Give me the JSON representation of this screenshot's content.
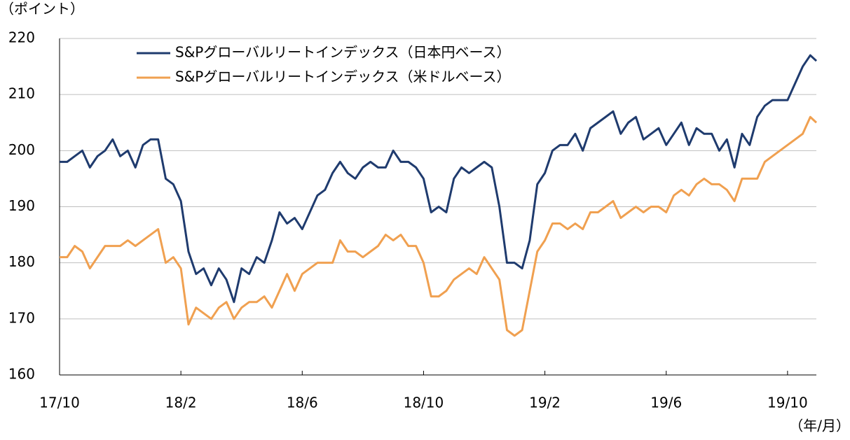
{
  "chart_data": {
    "type": "line",
    "y_unit_label": "（ポイント）",
    "x_unit_label": "（年/月）",
    "xlim": [
      0,
      24.95
    ],
    "xticks": [
      {
        "value": 0,
        "label": "17/10"
      },
      {
        "value": 4,
        "label": "18/2"
      },
      {
        "value": 8,
        "label": "18/6"
      },
      {
        "value": 12,
        "label": "18/10"
      },
      {
        "value": 16,
        "label": "19/2"
      },
      {
        "value": 20,
        "label": "19/6"
      },
      {
        "value": 24,
        "label": "19/10"
      }
    ],
    "ylim": [
      160,
      220
    ],
    "yticks": [
      160,
      170,
      180,
      190,
      200,
      210,
      220
    ],
    "grid": true,
    "legend": "upper-left",
    "x": [
      0,
      0.25,
      0.5,
      0.75,
      1,
      1.25,
      1.5,
      1.75,
      2,
      2.25,
      2.5,
      2.75,
      3,
      3.25,
      3.5,
      3.75,
      4,
      4.25,
      4.5,
      4.75,
      5,
      5.25,
      5.5,
      5.75,
      6,
      6.25,
      6.5,
      6.75,
      7,
      7.25,
      7.5,
      7.75,
      8,
      8.25,
      8.5,
      8.75,
      9,
      9.25,
      9.5,
      9.75,
      10,
      10.25,
      10.5,
      10.75,
      11,
      11.25,
      11.5,
      11.75,
      12,
      12.25,
      12.5,
      12.75,
      13,
      13.25,
      13.5,
      13.75,
      14,
      14.25,
      14.5,
      14.75,
      15,
      15.25,
      15.5,
      15.75,
      16,
      16.25,
      16.5,
      16.75,
      17,
      17.25,
      17.5,
      17.75,
      18,
      18.25,
      18.5,
      18.75,
      19,
      19.25,
      19.5,
      19.75,
      20,
      20.25,
      20.5,
      20.75,
      21,
      21.25,
      21.5,
      21.75,
      22,
      22.25,
      22.5,
      22.75,
      23,
      23.25,
      23.5,
      23.75,
      24,
      24.25,
      24.5,
      24.75,
      24.95
    ],
    "series": [
      {
        "name": "S&Pグローバルリートインデックス（日本円ベース）",
        "color": "#1f3b6e",
        "values": [
          198,
          198,
          199,
          200,
          197,
          199,
          200,
          202,
          199,
          200,
          197,
          201,
          202,
          202,
          195,
          194,
          191,
          182,
          178,
          179,
          176,
          179,
          177,
          173,
          179,
          178,
          181,
          180,
          184,
          189,
          187,
          188,
          186,
          189,
          192,
          193,
          196,
          198,
          196,
          195,
          197,
          198,
          197,
          197,
          200,
          198,
          198,
          197,
          195,
          189,
          190,
          189,
          195,
          197,
          196,
          197,
          198,
          197,
          190,
          180,
          180,
          179,
          184,
          194,
          196,
          200,
          201,
          201,
          203,
          200,
          204,
          205,
          206,
          207,
          203,
          205,
          206,
          202,
          203,
          204,
          201,
          203,
          205,
          201,
          204,
          203,
          203,
          200,
          202,
          197,
          203,
          201,
          206,
          208,
          209,
          209,
          209,
          212,
          215,
          217,
          216
        ]
      },
      {
        "name": "S&Pグローバルリートインデックス（米ドルベース）",
        "color": "#f0a050",
        "values": [
          181,
          181,
          183,
          182,
          179,
          181,
          183,
          183,
          183,
          184,
          183,
          184,
          185,
          186,
          180,
          181,
          179,
          169,
          172,
          171,
          170,
          172,
          173,
          170,
          172,
          173,
          173,
          174,
          172,
          175,
          178,
          175,
          178,
          179,
          180,
          180,
          180,
          184,
          182,
          182,
          181,
          182,
          183,
          185,
          184,
          185,
          183,
          183,
          180,
          174,
          174,
          175,
          177,
          178,
          179,
          178,
          181,
          179,
          177,
          168,
          167,
          168,
          175,
          182,
          184,
          187,
          187,
          186,
          187,
          186,
          189,
          189,
          190,
          191,
          188,
          189,
          190,
          189,
          190,
          190,
          189,
          192,
          193,
          192,
          194,
          195,
          194,
          194,
          193,
          191,
          195,
          195,
          195,
          198,
          199,
          200,
          201,
          202,
          203,
          206,
          205
        ]
      }
    ]
  }
}
